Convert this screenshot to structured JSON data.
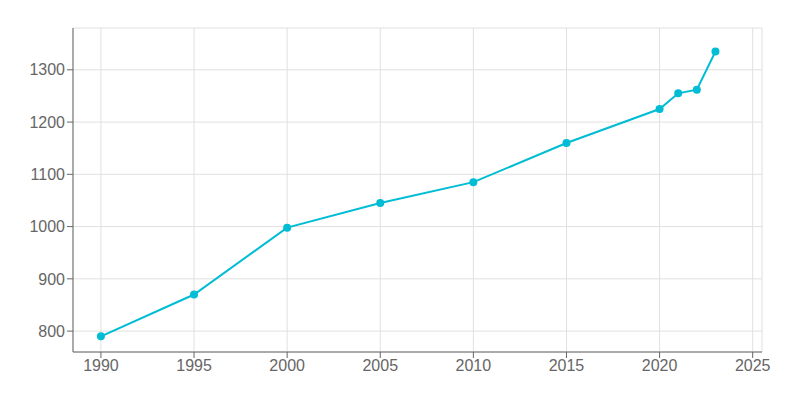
{
  "chart_data": {
    "type": "line",
    "x": [
      1990,
      1995,
      2000,
      2005,
      2010,
      2015,
      2020,
      2021,
      2022,
      2023
    ],
    "values": [
      790,
      870,
      998,
      1045,
      1085,
      1160,
      1225,
      1255,
      1262,
      1335
    ],
    "color": "#00bcd4",
    "marker": "circle",
    "xlim": [
      1988.5,
      2025.5
    ],
    "ylim": [
      760,
      1380
    ],
    "xticks": [
      1990,
      1995,
      2000,
      2005,
      2010,
      2015,
      2020,
      2025
    ],
    "yticks": [
      800,
      900,
      1000,
      1100,
      1200,
      1300
    ],
    "grid": true
  }
}
